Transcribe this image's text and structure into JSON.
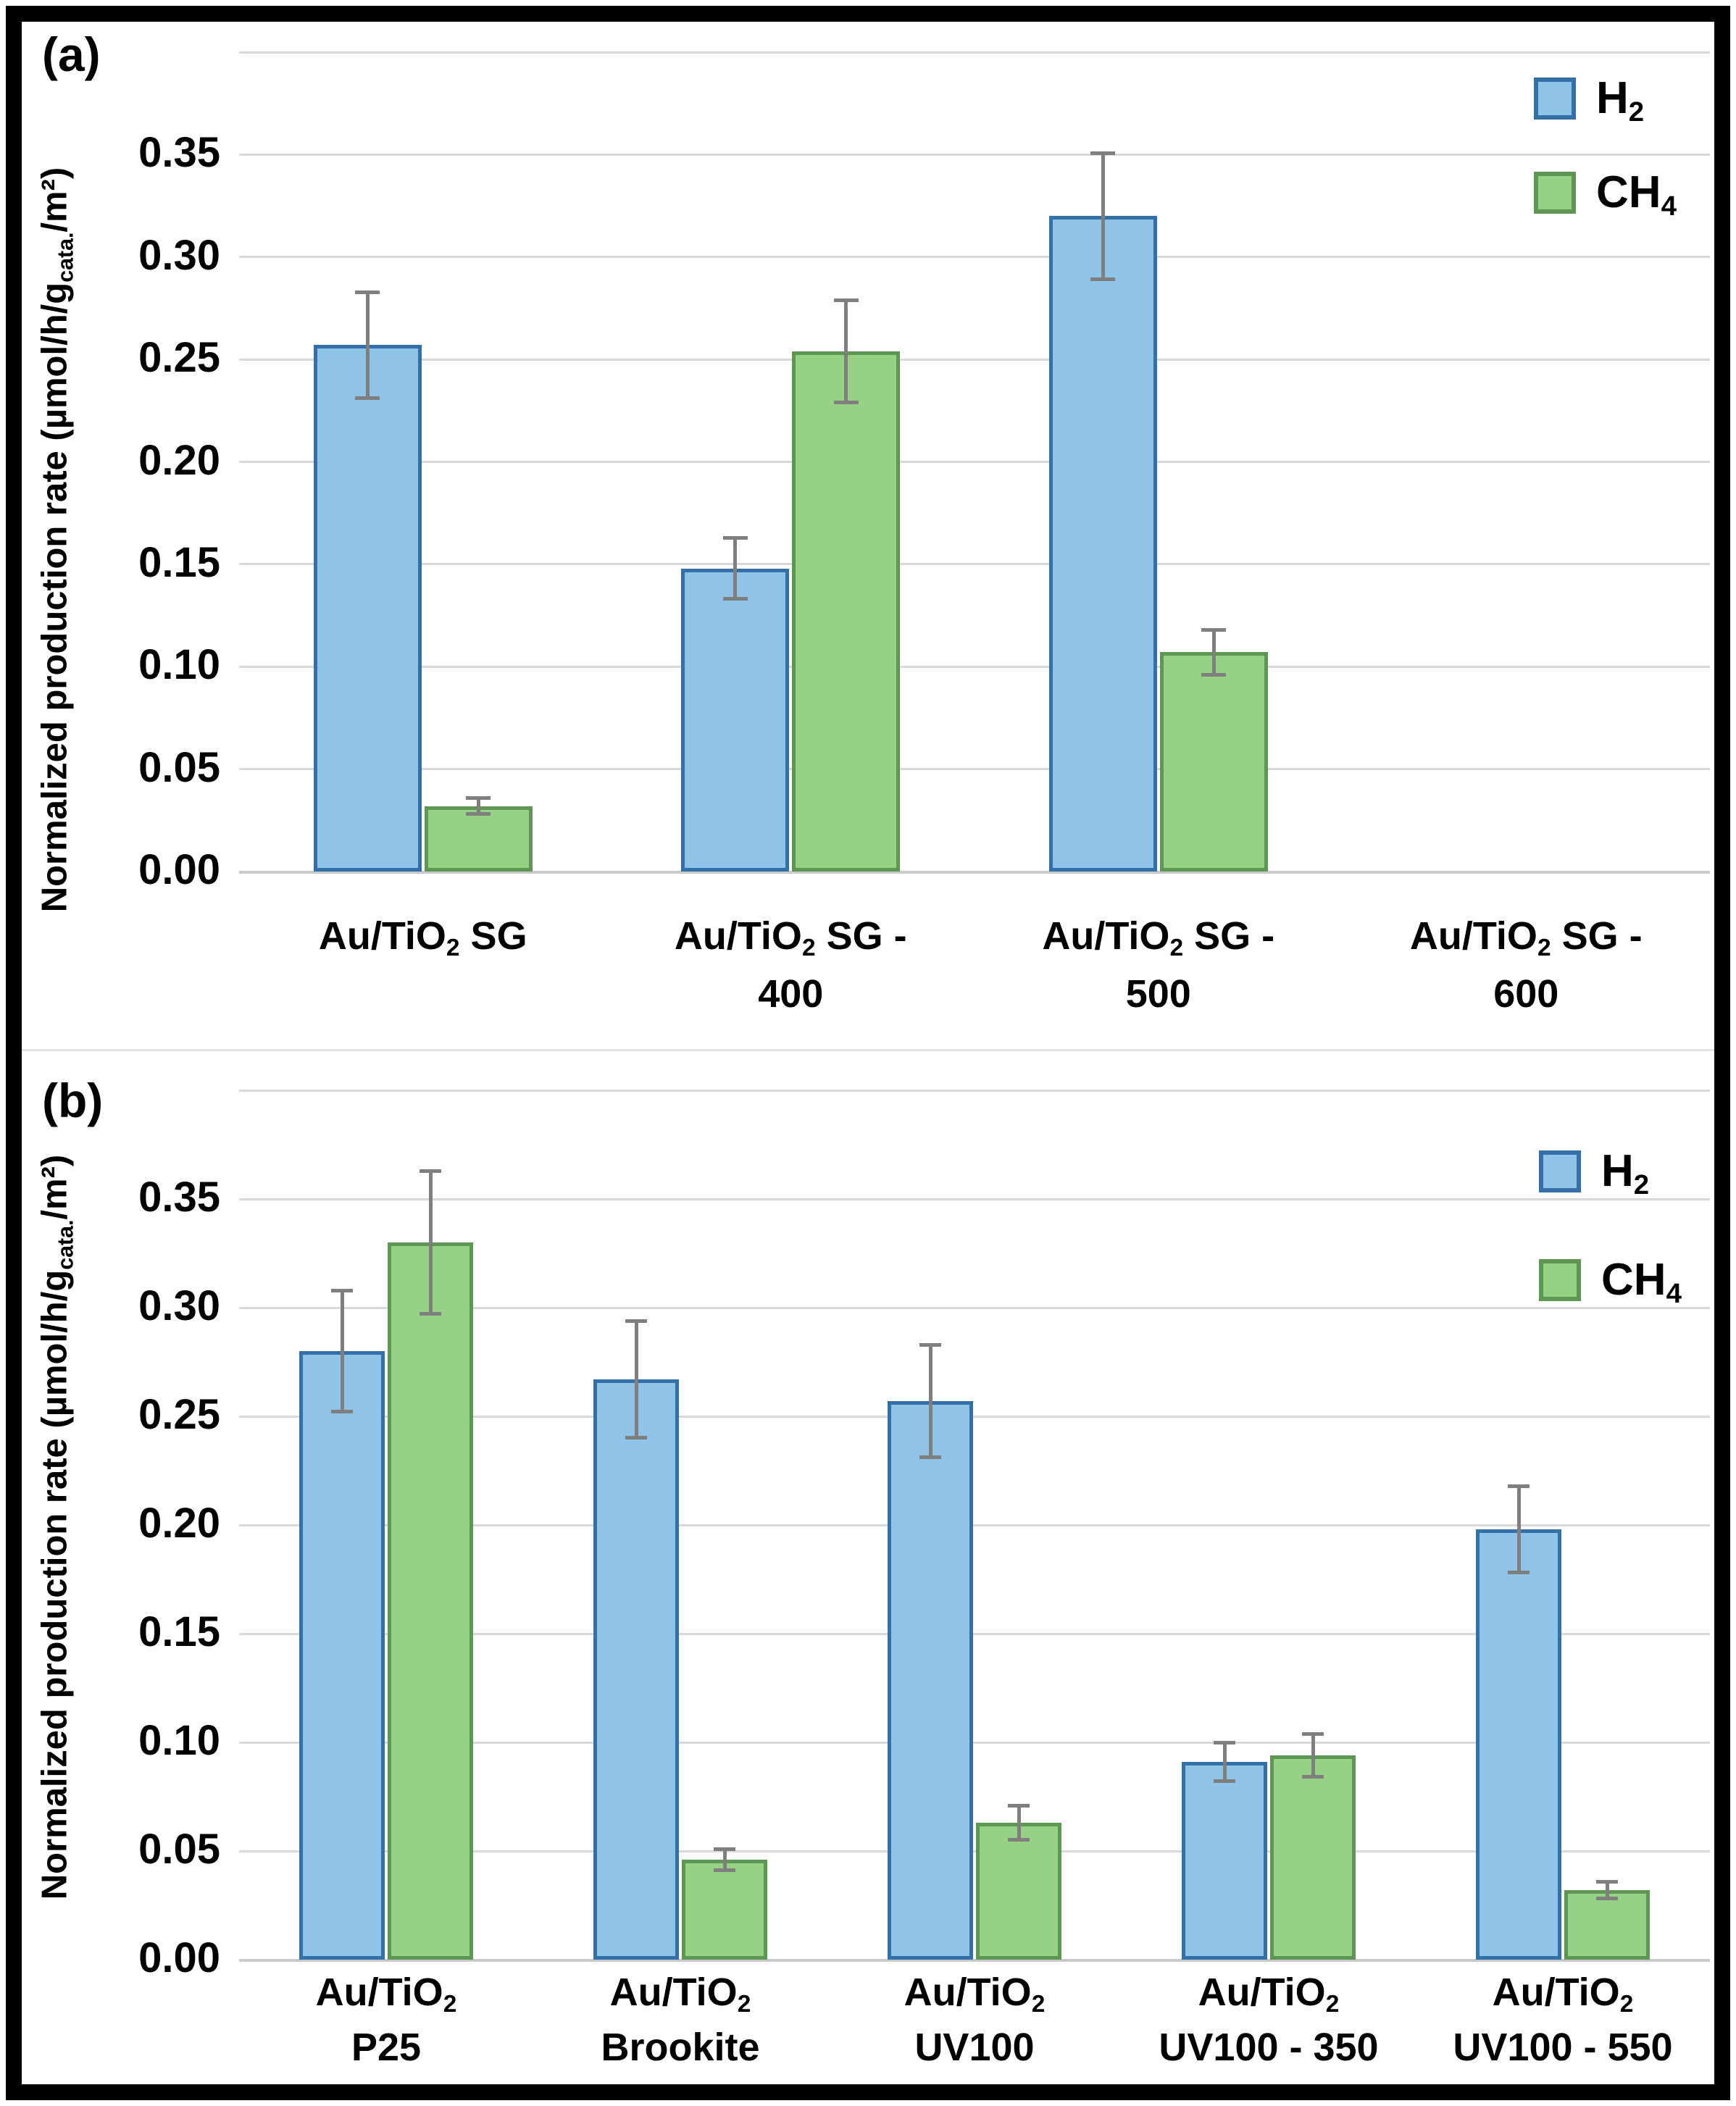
{
  "panels": [
    {
      "tag": "(a)",
      "ylabel": "Normalized production rate (µmol/h/g_{cata.}/m²)",
      "legend": [
        {
          "id": "h2",
          "label": "H_{2}"
        },
        {
          "id": "ch4",
          "label": "CH_{4}"
        }
      ]
    },
    {
      "tag": "(b)",
      "ylabel": "Normalized production rate (µmol/h/g_{cata.}/m²)",
      "legend": [
        {
          "id": "h2",
          "label": "H_{2}"
        },
        {
          "id": "ch4",
          "label": "CH_{4}"
        }
      ]
    }
  ],
  "colors": {
    "h2_fill": "#8FC4E8",
    "h2_border": "#3470A8",
    "ch4_fill": "#96D184",
    "ch4_border": "#5E9653",
    "error_bar": "#7F7F7F",
    "gridline": "#D9D9D9",
    "baseline": "#C9C9C9",
    "frame": "#000000",
    "divider": "#E3E3E3"
  },
  "chart_data": [
    {
      "type": "bar",
      "panel": "(a)",
      "categories": [
        "Au/TiO2 SG",
        "Au/TiO2 SG - 400",
        "Au/TiO2 SG - 500",
        "Au/TiO2 SG - 600"
      ],
      "categories_display": [
        [
          "Au/TiO_{2} SG",
          ""
        ],
        [
          "Au/TiO_{2} SG -",
          "400"
        ],
        [
          "Au/TiO_{2} SG -",
          "500"
        ],
        [
          "Au/TiO_{2} SG -",
          "600"
        ]
      ],
      "series": [
        {
          "name": "H2",
          "values": [
            0.257,
            0.148,
            0.32,
            0
          ],
          "errors": [
            0.026,
            0.015,
            0.031,
            0
          ]
        },
        {
          "name": "CH4",
          "values": [
            0.032,
            0.254,
            0.107,
            0
          ],
          "errors": [
            0.004,
            0.025,
            0.011,
            0
          ]
        }
      ],
      "ylabel": "Normalized production rate (µmol/h/g_cata./m²)",
      "xlabel": "",
      "ylim": [
        0,
        0.4
      ],
      "ytick_step": 0.05,
      "yticks_labeled": [
        "0.00",
        "0.05",
        "0.10",
        "0.15",
        "0.20",
        "0.25",
        "0.30",
        "0.35"
      ],
      "grid": true,
      "legend_position": "top-right",
      "legend_entries": [
        "H2",
        "CH4"
      ]
    },
    {
      "type": "bar",
      "panel": "(b)",
      "categories": [
        "Au/TiO2 P25",
        "Au/TiO2 Brookite",
        "Au/TiO2 UV100",
        "Au/TiO2 UV100 - 350",
        "Au/TiO2 UV100 - 550"
      ],
      "categories_display": [
        [
          "Au/TiO_{2}",
          "P25"
        ],
        [
          "Au/TiO_{2}",
          "Brookite"
        ],
        [
          "Au/TiO_{2}",
          "UV100"
        ],
        [
          "Au/TiO_{2}",
          "UV100 - 350"
        ],
        [
          "Au/TiO_{2}",
          "UV100 - 550"
        ]
      ],
      "series": [
        {
          "name": "H2",
          "values": [
            0.28,
            0.267,
            0.257,
            0.091,
            0.198
          ],
          "errors": [
            0.028,
            0.027,
            0.026,
            0.009,
            0.02
          ]
        },
        {
          "name": "CH4",
          "values": [
            0.33,
            0.046,
            0.063,
            0.094,
            0.032
          ],
          "errors": [
            0.033,
            0.005,
            0.008,
            0.01,
            0.004
          ]
        }
      ],
      "ylabel": "Normalized production rate (µmol/h/g_cata./m²)",
      "xlabel": "",
      "ylim": [
        0,
        0.4
      ],
      "ytick_step": 0.05,
      "yticks_labeled": [
        "0.00",
        "0.05",
        "0.10",
        "0.15",
        "0.20",
        "0.25",
        "0.30",
        "0.35"
      ],
      "grid": true,
      "legend_position": "top-right",
      "legend_entries": [
        "H2",
        "CH4"
      ]
    }
  ]
}
